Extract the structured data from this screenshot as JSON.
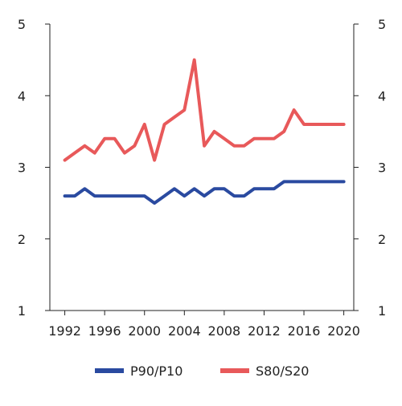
{
  "chart_data": {
    "type": "line",
    "title": "",
    "xlabel": "",
    "ylabel": "",
    "xlim": [
      1990.5,
      2021
    ],
    "ylim": [
      1,
      5
    ],
    "yticks": [
      1,
      2,
      3,
      4,
      5
    ],
    "xticks": [
      1992,
      1996,
      2000,
      2004,
      2008,
      2012,
      2016,
      2020
    ],
    "x": [
      1992,
      1993,
      1994,
      1995,
      1996,
      1997,
      1998,
      1999,
      2000,
      2001,
      2002,
      2003,
      2004,
      2005,
      2006,
      2007,
      2008,
      2009,
      2010,
      2011,
      2012,
      2013,
      2014,
      2015,
      2016,
      2017,
      2018,
      2019,
      2020
    ],
    "series": [
      {
        "name": "P90/P10",
        "color": "#2a4aa0",
        "values": [
          2.6,
          2.6,
          2.7,
          2.6,
          2.6,
          2.6,
          2.6,
          2.6,
          2.6,
          2.5,
          2.6,
          2.7,
          2.6,
          2.7,
          2.6,
          2.7,
          2.7,
          2.6,
          2.6,
          2.7,
          2.7,
          2.7,
          2.8,
          2.8,
          2.8,
          2.8,
          2.8,
          2.8,
          2.8
        ]
      },
      {
        "name": "S80/S20",
        "color": "#e8595a",
        "values": [
          3.1,
          3.2,
          3.3,
          3.2,
          3.4,
          3.4,
          3.2,
          3.3,
          3.6,
          3.1,
          3.6,
          3.7,
          3.8,
          4.5,
          3.3,
          3.5,
          3.4,
          3.3,
          3.3,
          3.4,
          3.4,
          3.4,
          3.5,
          3.8,
          3.6,
          3.6,
          3.6,
          3.6,
          3.6
        ]
      }
    ],
    "grid": false,
    "legend_position": "bottom-center",
    "axis_color": "#222222"
  }
}
